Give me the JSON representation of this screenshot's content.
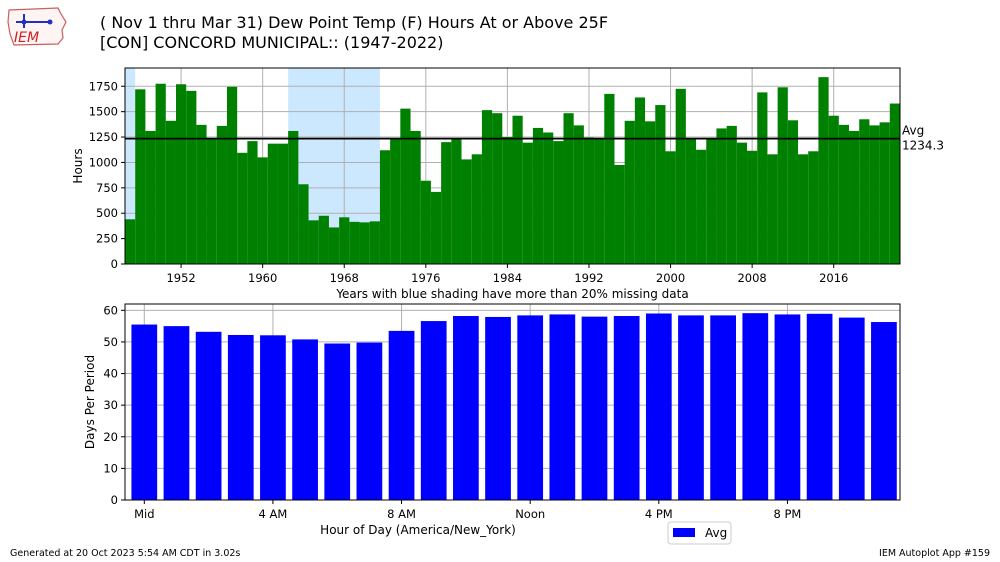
{
  "header": {
    "title_line1": "( Nov 1 thru Mar 31) Dew Point Temp (F) Hours At or Above 25F",
    "title_line2": "[CON] CONCORD MUNICIPAL:: (1947-2022)",
    "logo_text": "IEM"
  },
  "footer": {
    "generated": "Generated at 20 Oct 2023 5:54 AM CDT in 3.02s",
    "app": "IEM Autoplot App #159"
  },
  "colors": {
    "top_bar": "#008000",
    "bottom_bar": "#0000ff",
    "shade": "#cce8ff",
    "grid": "#b0b0b0"
  },
  "chart_data": [
    {
      "type": "bar",
      "ylabel": "Hours",
      "xlabel": "Years with blue shading have more than 20% missing data",
      "ylim": [
        0,
        1930
      ],
      "xlim": [
        1946.5,
        2022.5
      ],
      "yticks": [
        0,
        250,
        500,
        750,
        1000,
        1250,
        1500,
        1750
      ],
      "xticks": [
        1952,
        1960,
        1968,
        1976,
        1984,
        1992,
        2000,
        2008,
        2016
      ],
      "avg_value": 1234.3,
      "avg_label": "Avg",
      "avg_value_label": "1234.3",
      "shaded_ranges": [
        [
          1946.5,
          1947.5
        ],
        [
          1962.5,
          1971.5
        ]
      ],
      "x": [
        1947,
        1948,
        1949,
        1950,
        1951,
        1952,
        1953,
        1954,
        1955,
        1956,
        1957,
        1958,
        1959,
        1960,
        1961,
        1962,
        1963,
        1964,
        1965,
        1966,
        1967,
        1968,
        1969,
        1970,
        1971,
        1972,
        1973,
        1974,
        1975,
        1976,
        1977,
        1978,
        1979,
        1980,
        1981,
        1982,
        1983,
        1984,
        1985,
        1986,
        1987,
        1988,
        1989,
        1990,
        1991,
        1992,
        1993,
        1994,
        1995,
        1996,
        1997,
        1998,
        1999,
        2000,
        2001,
        2002,
        2003,
        2004,
        2005,
        2006,
        2007,
        2008,
        2009,
        2010,
        2011,
        2012,
        2013,
        2014,
        2015,
        2016,
        2017,
        2018,
        2019,
        2020,
        2021,
        2022
      ],
      "values": [
        440,
        1720,
        1310,
        1775,
        1410,
        1770,
        1705,
        1370,
        1230,
        1360,
        1745,
        1095,
        1210,
        1050,
        1185,
        1185,
        1310,
        785,
        430,
        475,
        360,
        460,
        415,
        410,
        420,
        1120,
        1240,
        1530,
        1310,
        820,
        710,
        1200,
        1240,
        1030,
        1080,
        1515,
        1485,
        1250,
        1460,
        1195,
        1340,
        1295,
        1210,
        1485,
        1365,
        1245,
        1235,
        1675,
        975,
        1410,
        1640,
        1405,
        1565,
        1110,
        1725,
        1240,
        1125,
        1235,
        1335,
        1360,
        1195,
        1115,
        1690,
        1080,
        1740,
        1415,
        1080,
        1110,
        1840,
        1460,
        1370,
        1310,
        1425,
        1365,
        1395,
        1580
      ]
    },
    {
      "type": "bar",
      "ylabel": "Days Per Period",
      "xlabel": "Hour of Day (America/New_York)",
      "ylim": [
        0,
        62
      ],
      "xlim": [
        -0.6,
        23.5
      ],
      "yticks": [
        0,
        10,
        20,
        30,
        40,
        50,
        60
      ],
      "xtick_positions": [
        0,
        4,
        8,
        12,
        16,
        20
      ],
      "xtick_labels": [
        "Mid",
        "4 AM",
        "8 AM",
        "Noon",
        "4 PM",
        "8 PM"
      ],
      "legend": "Avg",
      "legend_position": "below-right",
      "x": [
        0,
        1,
        2,
        3,
        4,
        5,
        6,
        7,
        8,
        9,
        10,
        11,
        12,
        13,
        14,
        15,
        16,
        17,
        18,
        19,
        20,
        21,
        22,
        23
      ],
      "values": [
        55.5,
        55.0,
        53.2,
        52.2,
        52.1,
        50.8,
        49.5,
        49.8,
        53.5,
        56.6,
        58.2,
        57.9,
        58.4,
        58.7,
        58.0,
        58.2,
        59.0,
        58.4,
        58.4,
        59.1,
        58.7,
        58.9,
        57.7,
        56.3
      ]
    }
  ]
}
